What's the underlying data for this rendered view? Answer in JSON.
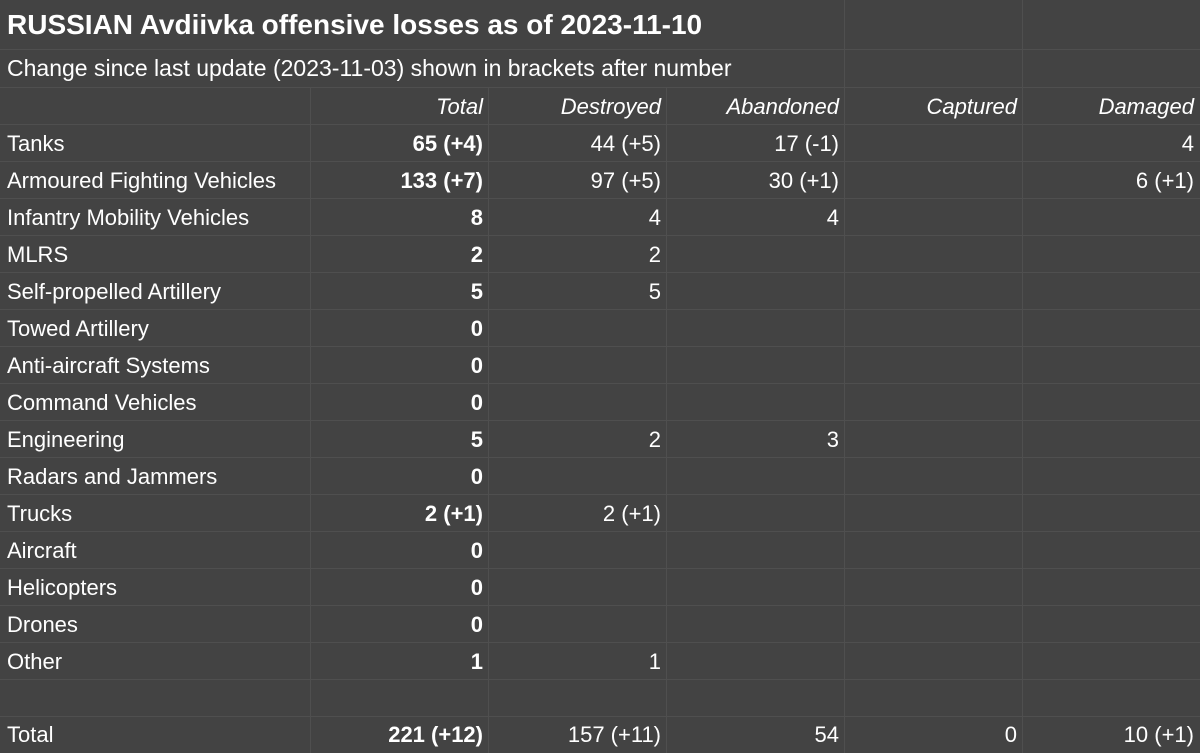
{
  "title": "RUSSIAN Avdiivka offensive losses as of 2023-11-10",
  "subtitle": "Change since last update (2023-11-03) shown in brackets after number",
  "headers": {
    "total": "Total",
    "destroyed": "Destroyed",
    "abandoned": "Abandoned",
    "captured": "Captured",
    "damaged": "Damaged"
  },
  "rows": [
    {
      "label": "Tanks",
      "total": "65 (+4)",
      "destroyed": "44 (+5)",
      "abandoned": "17 (-1)",
      "captured": "",
      "damaged": "4"
    },
    {
      "label": "Armoured Fighting Vehicles",
      "total": "133 (+7)",
      "destroyed": "97 (+5)",
      "abandoned": "30 (+1)",
      "captured": "",
      "damaged": "6 (+1)"
    },
    {
      "label": "Infantry Mobility Vehicles",
      "total": "8",
      "destroyed": "4",
      "abandoned": "4",
      "captured": "",
      "damaged": ""
    },
    {
      "label": "MLRS",
      "total": "2",
      "destroyed": "2",
      "abandoned": "",
      "captured": "",
      "damaged": ""
    },
    {
      "label": "Self-propelled Artillery",
      "total": "5",
      "destroyed": "5",
      "abandoned": "",
      "captured": "",
      "damaged": ""
    },
    {
      "label": "Towed Artillery",
      "total": "0",
      "destroyed": "",
      "abandoned": "",
      "captured": "",
      "damaged": ""
    },
    {
      "label": "Anti-aircraft Systems",
      "total": "0",
      "destroyed": "",
      "abandoned": "",
      "captured": "",
      "damaged": ""
    },
    {
      "label": "Command Vehicles",
      "total": "0",
      "destroyed": "",
      "abandoned": "",
      "captured": "",
      "damaged": ""
    },
    {
      "label": "Engineering",
      "total": "5",
      "destroyed": "2",
      "abandoned": "3",
      "captured": "",
      "damaged": ""
    },
    {
      "label": "Radars and Jammers",
      "total": "0",
      "destroyed": "",
      "abandoned": "",
      "captured": "",
      "damaged": ""
    },
    {
      "label": "Trucks",
      "total": "2 (+1)",
      "destroyed": "2 (+1)",
      "abandoned": "",
      "captured": "",
      "damaged": ""
    },
    {
      "label": "Aircraft",
      "total": "0",
      "destroyed": "",
      "abandoned": "",
      "captured": "",
      "damaged": ""
    },
    {
      "label": "Helicopters",
      "total": "0",
      "destroyed": "",
      "abandoned": "",
      "captured": "",
      "damaged": ""
    },
    {
      "label": "Drones",
      "total": "0",
      "destroyed": "",
      "abandoned": "",
      "captured": "",
      "damaged": ""
    },
    {
      "label": "Other",
      "total": "1",
      "destroyed": "1",
      "abandoned": "",
      "captured": "",
      "damaged": ""
    }
  ],
  "totals": {
    "label": "Total",
    "total": "221 (+12)",
    "destroyed": "157 (+11)",
    "abandoned": "54",
    "captured": "0",
    "damaged": "10 (+1)"
  },
  "colors": {
    "background": "#434343",
    "gridline": "#4f4f4f",
    "text": "#ffffff"
  }
}
